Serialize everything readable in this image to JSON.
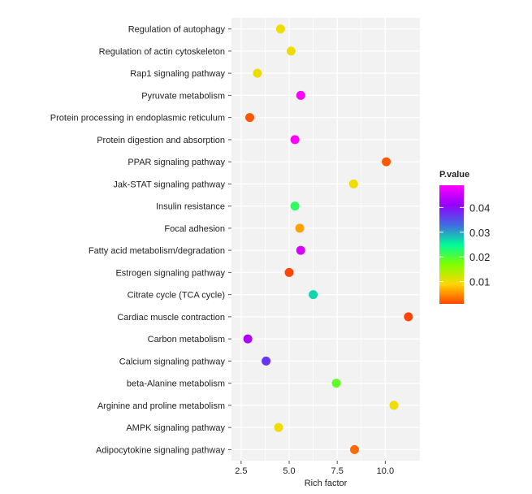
{
  "chart_data": {
    "type": "scatter",
    "title": "",
    "xlabel": "Rich factor",
    "ylabel": "",
    "xlim": [
      2.0,
      11.8
    ],
    "xticks": [
      "2.5",
      "5.0",
      "7.5",
      "10.0"
    ],
    "xtick_values": [
      2.5,
      5.0,
      7.5,
      10.0
    ],
    "grid": true,
    "legend": {
      "title": "P.value",
      "placement": "right",
      "ticks": [
        "0.04",
        "0.03",
        "0.02",
        "0.01"
      ],
      "tick_values": [
        0.04,
        0.03,
        0.02,
        0.01
      ],
      "range": [
        0.001,
        0.049
      ],
      "colors": [
        "#FF4500",
        "#FFD700",
        "#7FFF00",
        "#00FA9A",
        "#4169E1",
        "#9400FF",
        "#FF00FF"
      ]
    },
    "categories": [
      "Regulation of autophagy",
      "Regulation of actin cytoskeleton",
      "Rap1 signaling pathway",
      "Pyruvate metabolism",
      "Protein processing in endoplasmic reticulum",
      "Protein digestion and absorption",
      "PPAR signaling pathway",
      "Jak-STAT signaling pathway",
      "Insulin resistance",
      "Focal adhesion",
      "Fatty acid metabolism/degradation",
      "Estrogen signaling pathway",
      "Citrate cycle (TCA cycle)",
      "Cardiac muscle contraction",
      "Carbon metabolism",
      "Calcium signaling pathway",
      "beta-Alanine metabolism",
      "Arginine and proline metabolism",
      "AMPK signaling pathway",
      "Adipocytokine signaling pathway"
    ],
    "points": [
      {
        "x": 4.55,
        "p": 0.01
      },
      {
        "x": 5.1,
        "p": 0.01
      },
      {
        "x": 3.35,
        "p": 0.01
      },
      {
        "x": 5.6,
        "p": 0.049
      },
      {
        "x": 2.95,
        "p": 0.002
      },
      {
        "x": 5.3,
        "p": 0.049
      },
      {
        "x": 10.05,
        "p": 0.002
      },
      {
        "x": 8.35,
        "p": 0.01
      },
      {
        "x": 5.3,
        "p": 0.022
      },
      {
        "x": 5.55,
        "p": 0.006
      },
      {
        "x": 5.6,
        "p": 0.046
      },
      {
        "x": 5.0,
        "p": 0.001
      },
      {
        "x": 6.25,
        "p": 0.027
      },
      {
        "x": 11.2,
        "p": 0.001
      },
      {
        "x": 2.85,
        "p": 0.043
      },
      {
        "x": 3.8,
        "p": 0.037
      },
      {
        "x": 7.45,
        "p": 0.019
      },
      {
        "x": 10.45,
        "p": 0.01
      },
      {
        "x": 4.45,
        "p": 0.01
      },
      {
        "x": 8.4,
        "p": 0.003
      }
    ]
  }
}
